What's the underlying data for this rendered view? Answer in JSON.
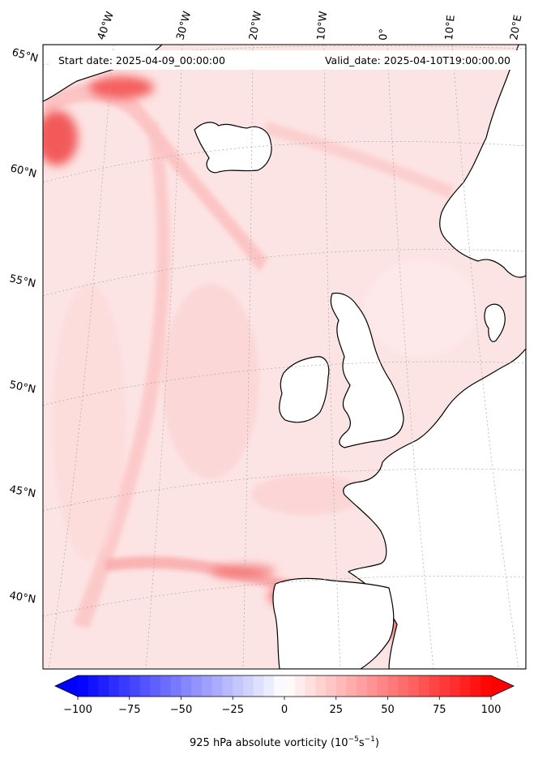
{
  "header": {
    "start_label": "Start date: 2025-04-09_00:00:00",
    "valid_label": "Valid_date: 2025-04-10T19:00:00.00"
  },
  "map": {
    "projection": "lambert-conic",
    "field": "925 hPa absolute vorticity",
    "land_color": "#ffffff",
    "coastline_color": "#000000",
    "longitude_labels": [
      "40°W",
      "30°W",
      "20°W",
      "10°W",
      "0°",
      "10°E",
      "20°E"
    ],
    "latitude_labels": [
      "65°N",
      "60°N",
      "55°N",
      "50°N",
      "45°N",
      "40°N"
    ],
    "gridlines": true
  },
  "colorbar": {
    "colormap": "bwr",
    "range": [
      -100,
      100
    ],
    "extend": "both",
    "ticks": [
      "−100",
      "−75",
      "−50",
      "−25",
      "0",
      "25",
      "50",
      "75",
      "100"
    ],
    "label_main": "925 hPa absolute vorticity (10",
    "label_exp1": "−5",
    "label_mid": "s",
    "label_exp2": "−1",
    "label_end": ")"
  }
}
